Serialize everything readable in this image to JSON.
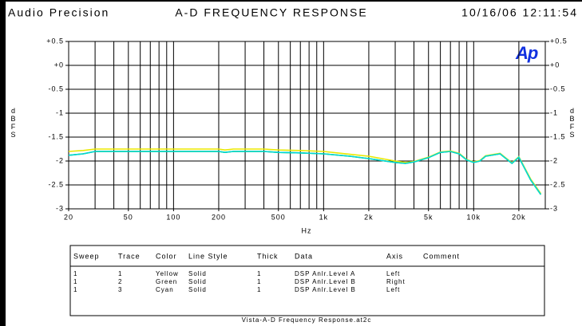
{
  "header": {
    "left": "Audio Precision",
    "center": "A-D FREQUENCY RESPONSE",
    "right": "10/16/06 12:11:54"
  },
  "chart_data": {
    "type": "line",
    "logo": "Ap",
    "xlabel": "Hz",
    "ylabel": "dBFS",
    "y2label": "dBFS",
    "xlog": true,
    "grid": true,
    "xlim": [
      20,
      30000
    ],
    "xticks": [
      20,
      50,
      100,
      200,
      500,
      {
        "value": 1000,
        "label": "1k"
      },
      {
        "value": 2000,
        "label": "2k"
      },
      {
        "value": 5000,
        "label": "5k"
      },
      {
        "value": 10000,
        "label": "10k"
      },
      {
        "value": 20000,
        "label": "20k"
      }
    ],
    "xgrid": [
      20,
      30,
      40,
      50,
      60,
      70,
      80,
      90,
      100,
      200,
      300,
      400,
      500,
      600,
      700,
      800,
      900,
      1000,
      2000,
      3000,
      4000,
      5000,
      6000,
      7000,
      8000,
      9000,
      10000,
      20000
    ],
    "ylim": [
      -3,
      0.5
    ],
    "yticks": [
      {
        "value": 0.5,
        "label": "+0.5"
      },
      {
        "value": 0,
        "label": "+0"
      },
      -0.5,
      -1,
      -1.5,
      -2,
      -2.5,
      -3
    ],
    "y2lim": [
      -3,
      0.5
    ],
    "y2ticks": [
      {
        "value": 0.5,
        "label": "+0.5"
      },
      {
        "value": 0,
        "label": "+0"
      },
      -0.5,
      -1,
      -1.5,
      -2,
      -2.5,
      -3
    ],
    "x": [
      20,
      25,
      30,
      40,
      50,
      70,
      100,
      150,
      200,
      220,
      250,
      300,
      400,
      500,
      700,
      1000,
      1500,
      2000,
      3000,
      3500,
      4000,
      5000,
      6000,
      7000,
      8000,
      9000,
      10000,
      11000,
      12000,
      15000,
      18000,
      20000,
      24000,
      28000
    ],
    "series": [
      {
        "name": "Yellow",
        "color": "#e8e800",
        "values": [
          -1.8,
          -1.78,
          -1.75,
          -1.75,
          -1.75,
          -1.75,
          -1.75,
          -1.75,
          -1.75,
          -1.77,
          -1.75,
          -1.75,
          -1.75,
          -1.77,
          -1.78,
          -1.8,
          -1.86,
          -1.9,
          -2.0,
          -2.03,
          -2.01,
          -1.92,
          -1.81,
          -1.79,
          -1.84,
          -1.97,
          -2.02,
          -1.99,
          -1.89,
          -1.84,
          -2.04,
          -1.91,
          -2.38,
          -2.68
        ]
      },
      {
        "name": "Green",
        "color": "#00b000",
        "axis": "y2",
        "values": [
          -1.88,
          -1.85,
          -1.8,
          -1.8,
          -1.8,
          -1.8,
          -1.8,
          -1.8,
          -1.8,
          -1.82,
          -1.8,
          -1.8,
          -1.8,
          -1.82,
          -1.83,
          -1.85,
          -1.9,
          -1.95,
          -2.03,
          -2.05,
          -2.02,
          -1.93,
          -1.82,
          -1.8,
          -1.85,
          -1.98,
          -2.03,
          -2.0,
          -1.9,
          -1.85,
          -2.05,
          -1.92,
          -2.4,
          -2.7
        ]
      },
      {
        "name": "Cyan",
        "color": "#00d8d8",
        "values": [
          -1.88,
          -1.85,
          -1.8,
          -1.8,
          -1.8,
          -1.8,
          -1.8,
          -1.8,
          -1.8,
          -1.82,
          -1.8,
          -1.8,
          -1.8,
          -1.82,
          -1.83,
          -1.85,
          -1.9,
          -1.95,
          -2.03,
          -2.05,
          -2.02,
          -1.93,
          -1.82,
          -1.8,
          -1.85,
          -1.98,
          -2.03,
          -2.0,
          -1.9,
          -1.85,
          -2.05,
          -1.92,
          -2.4,
          -2.7
        ]
      }
    ]
  },
  "table": {
    "columns": [
      "Sweep",
      "Trace",
      "Color",
      "Line Style",
      "Thick",
      "Data",
      "Axis",
      "Comment"
    ],
    "rows": [
      [
        "1",
        "1",
        "Yellow",
        "Solid",
        "1",
        "DSP Anlr.Level A",
        "Left"
      ],
      [
        "1",
        "2",
        "Green",
        "Solid",
        "1",
        "DSP Anlr.Level B",
        "Right"
      ],
      [
        "1",
        "3",
        "Cyan",
        "Solid",
        "1",
        "DSP Anlr.Level B",
        "Left"
      ]
    ]
  },
  "footer": "Vista-A-D Frequency Response.at2c"
}
